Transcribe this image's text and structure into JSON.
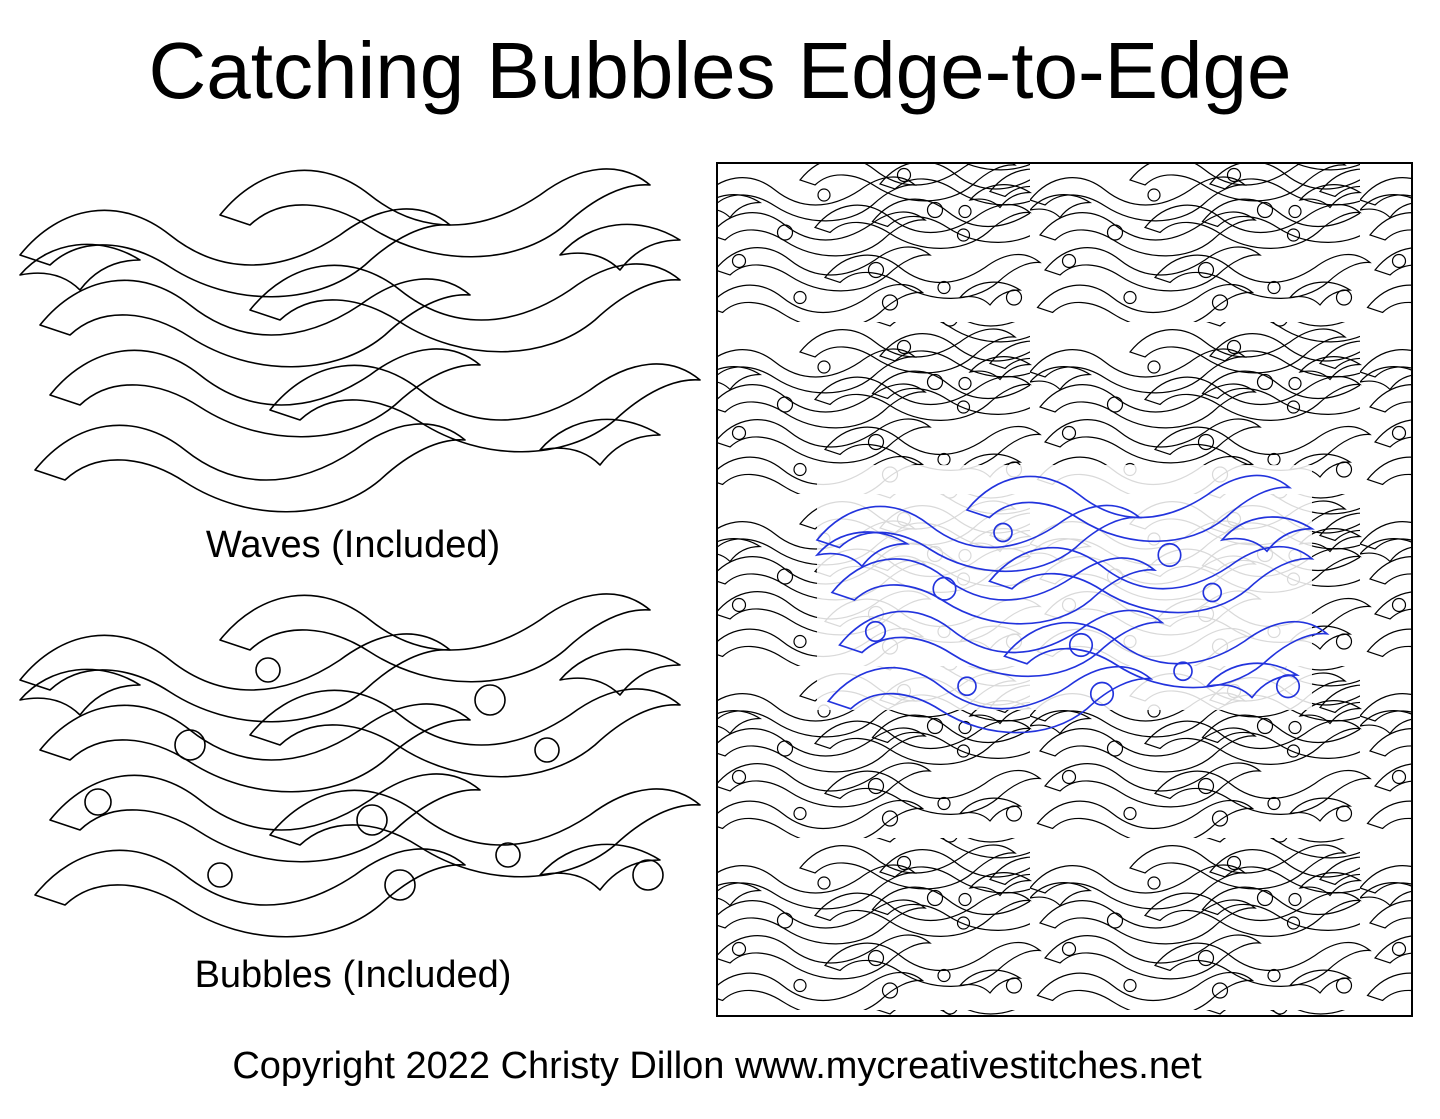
{
  "header": {
    "title": "Catching Bubbles Edge-to-Edge"
  },
  "panels": [
    {
      "caption": "Waves (Included)"
    },
    {
      "caption": "Bubbles (Included)"
    }
  ],
  "footer": {
    "copyright": "Copyright 2022 Christy Dillon www.mycreativestitches.net"
  }
}
